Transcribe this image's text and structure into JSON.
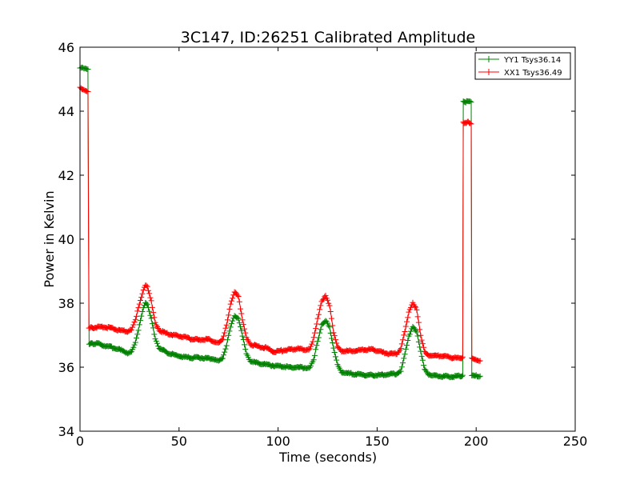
{
  "chart_data": {
    "type": "line",
    "title": "3C147, ID:26251 Calibrated Amplitude",
    "xlabel": "Time (seconds)",
    "ylabel": "Power in Kelvin",
    "xlim": [
      0,
      250
    ],
    "ylim": [
      34,
      46
    ],
    "xticks": [
      "0",
      "50",
      "100",
      "150",
      "200",
      "250"
    ],
    "yticks": [
      "34",
      "36",
      "38",
      "40",
      "42",
      "44",
      "46"
    ],
    "grid": false,
    "legend_position": "top-right",
    "series": [
      {
        "name": "YY1 Tsys36.14",
        "color": "#008000",
        "marker": "+",
        "points": [
          [
            0,
            45.35
          ],
          [
            2,
            45.33
          ],
          [
            4,
            45.3
          ],
          [
            4.6,
            36.72
          ],
          [
            8,
            36.75
          ],
          [
            12,
            36.68
          ],
          [
            16,
            36.62
          ],
          [
            20,
            36.55
          ],
          [
            24,
            36.45
          ],
          [
            26,
            36.5
          ],
          [
            28,
            36.8
          ],
          [
            30,
            37.3
          ],
          [
            32,
            37.85
          ],
          [
            33,
            38.0
          ],
          [
            34,
            37.95
          ],
          [
            36,
            37.5
          ],
          [
            38,
            36.9
          ],
          [
            40,
            36.6
          ],
          [
            44,
            36.45
          ],
          [
            48,
            36.38
          ],
          [
            52,
            36.32
          ],
          [
            56,
            36.3
          ],
          [
            60,
            36.3
          ],
          [
            64,
            36.28
          ],
          [
            68,
            36.25
          ],
          [
            70,
            36.22
          ],
          [
            72,
            36.3
          ],
          [
            74,
            36.7
          ],
          [
            76,
            37.25
          ],
          [
            78,
            37.6
          ],
          [
            80,
            37.5
          ],
          [
            82,
            37.0
          ],
          [
            84,
            36.45
          ],
          [
            86,
            36.2
          ],
          [
            90,
            36.12
          ],
          [
            94,
            36.08
          ],
          [
            98,
            36.05
          ],
          [
            102,
            36.03
          ],
          [
            106,
            36.0
          ],
          [
            110,
            36.0
          ],
          [
            114,
            35.98
          ],
          [
            116,
            36.0
          ],
          [
            118,
            36.25
          ],
          [
            120,
            36.8
          ],
          [
            122,
            37.3
          ],
          [
            124,
            37.45
          ],
          [
            126,
            37.25
          ],
          [
            128,
            36.6
          ],
          [
            130,
            36.1
          ],
          [
            132,
            35.85
          ],
          [
            136,
            35.8
          ],
          [
            140,
            35.78
          ],
          [
            144,
            35.76
          ],
          [
            148,
            35.75
          ],
          [
            152,
            35.76
          ],
          [
            156,
            35.78
          ],
          [
            160,
            35.8
          ],
          [
            162,
            35.9
          ],
          [
            164,
            36.4
          ],
          [
            166,
            36.95
          ],
          [
            168,
            37.25
          ],
          [
            170,
            37.1
          ],
          [
            172,
            36.5
          ],
          [
            174,
            35.95
          ],
          [
            176,
            35.78
          ],
          [
            180,
            35.72
          ],
          [
            184,
            35.72
          ],
          [
            188,
            35.7
          ],
          [
            192,
            35.72
          ],
          [
            193.2,
            35.73
          ],
          [
            193.5,
            44.3
          ],
          [
            196,
            44.3
          ],
          [
            197.5,
            44.28
          ],
          [
            197.8,
            35.75
          ],
          [
            200,
            35.74
          ],
          [
            202,
            35.72
          ]
        ]
      },
      {
        "name": "XX1 Tsys36.49",
        "color": "#ff0000",
        "marker": "+",
        "points": [
          [
            0,
            44.72
          ],
          [
            2,
            44.65
          ],
          [
            4,
            44.6
          ],
          [
            4.5,
            37.22
          ],
          [
            8,
            37.25
          ],
          [
            12,
            37.25
          ],
          [
            16,
            37.22
          ],
          [
            20,
            37.15
          ],
          [
            24,
            37.12
          ],
          [
            26,
            37.2
          ],
          [
            28,
            37.5
          ],
          [
            30,
            37.95
          ],
          [
            32,
            38.4
          ],
          [
            33,
            38.55
          ],
          [
            34,
            38.5
          ],
          [
            36,
            38.05
          ],
          [
            38,
            37.4
          ],
          [
            40,
            37.15
          ],
          [
            44,
            37.05
          ],
          [
            48,
            37.0
          ],
          [
            52,
            36.95
          ],
          [
            56,
            36.88
          ],
          [
            60,
            36.85
          ],
          [
            64,
            36.88
          ],
          [
            68,
            36.8
          ],
          [
            70,
            36.78
          ],
          [
            72,
            36.9
          ],
          [
            74,
            37.3
          ],
          [
            76,
            37.95
          ],
          [
            78,
            38.35
          ],
          [
            80,
            38.2
          ],
          [
            82,
            37.5
          ],
          [
            84,
            36.95
          ],
          [
            86,
            36.72
          ],
          [
            90,
            36.65
          ],
          [
            94,
            36.6
          ],
          [
            98,
            36.48
          ],
          [
            102,
            36.52
          ],
          [
            106,
            36.55
          ],
          [
            110,
            36.58
          ],
          [
            114,
            36.55
          ],
          [
            116,
            36.58
          ],
          [
            118,
            36.9
          ],
          [
            120,
            37.5
          ],
          [
            122,
            38.05
          ],
          [
            124,
            38.22
          ],
          [
            126,
            37.95
          ],
          [
            128,
            37.1
          ],
          [
            130,
            36.65
          ],
          [
            132,
            36.52
          ],
          [
            136,
            36.5
          ],
          [
            140,
            36.52
          ],
          [
            144,
            36.55
          ],
          [
            148,
            36.55
          ],
          [
            152,
            36.48
          ],
          [
            156,
            36.42
          ],
          [
            160,
            36.42
          ],
          [
            162,
            36.6
          ],
          [
            164,
            37.1
          ],
          [
            166,
            37.7
          ],
          [
            168,
            38.0
          ],
          [
            170,
            37.8
          ],
          [
            172,
            37.0
          ],
          [
            174,
            36.5
          ],
          [
            176,
            36.38
          ],
          [
            180,
            36.35
          ],
          [
            184,
            36.35
          ],
          [
            188,
            36.3
          ],
          [
            192,
            36.28
          ],
          [
            193.2,
            36.3
          ],
          [
            193.5,
            43.65
          ],
          [
            196,
            43.65
          ],
          [
            197.5,
            43.6
          ],
          [
            197.8,
            36.3
          ],
          [
            200,
            36.25
          ],
          [
            202,
            36.2
          ]
        ]
      }
    ]
  }
}
